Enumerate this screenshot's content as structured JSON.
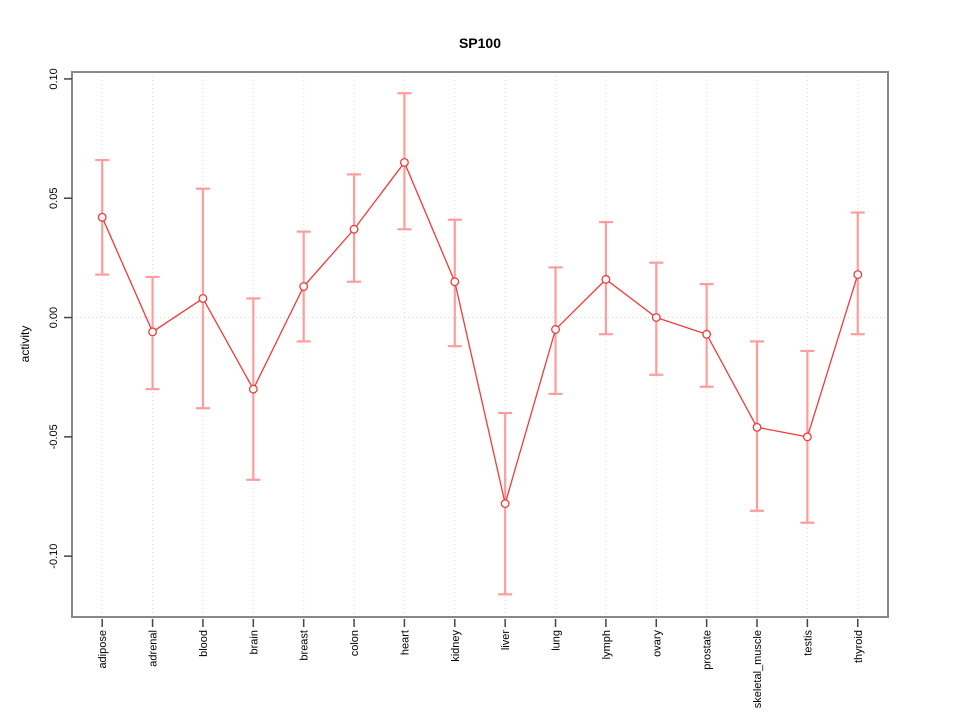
{
  "chart_data": {
    "type": "line",
    "title": "SP100",
    "xlabel": "",
    "ylabel": "activity",
    "legend": "none",
    "grid": {
      "vertical": "dotted light-gray line at every category",
      "horizontal": "dotted light-gray line at y=0 only"
    },
    "marker": "open-circle",
    "categories": [
      "adipose",
      "adrenal",
      "blood",
      "brain",
      "breast",
      "colon",
      "heart",
      "kidney",
      "liver",
      "lung",
      "lymph",
      "ovary",
      "prostate",
      "skeletal_muscle",
      "testis",
      "thyroid"
    ],
    "series": [
      {
        "name": "activity",
        "values": [
          0.042,
          -0.006,
          0.008,
          -0.03,
          0.013,
          0.037,
          0.065,
          0.015,
          -0.078,
          -0.005,
          0.016,
          0.0,
          -0.007,
          -0.046,
          -0.05,
          0.018
        ],
        "error_low": [
          0.018,
          -0.03,
          -0.038,
          -0.068,
          -0.01,
          0.015,
          0.037,
          -0.012,
          -0.116,
          -0.032,
          -0.007,
          -0.024,
          -0.029,
          -0.081,
          -0.086,
          -0.007
        ],
        "error_high": [
          0.066,
          0.017,
          0.054,
          0.008,
          0.036,
          0.06,
          0.094,
          0.041,
          -0.04,
          0.021,
          0.04,
          0.023,
          0.014,
          -0.01,
          -0.014,
          0.044
        ]
      }
    ],
    "yticks": [
      -0.1,
      -0.05,
      0.0,
      0.05,
      0.1
    ],
    "ytick_labels": [
      "-0.10",
      "-0.05",
      "0.00",
      "0.05",
      "0.10"
    ],
    "ylim": [
      -0.1255,
      0.1029
    ],
    "colors": {
      "line": "#ef3b3b",
      "marker": "#ef3b3b",
      "error_bar": "#ff9d9d",
      "grid": "#dcdcdc",
      "zero_line": "#d4d4d4",
      "box_border": "#888888",
      "tick": "#444444",
      "text": "#000000",
      "background": "#ffffff"
    }
  }
}
